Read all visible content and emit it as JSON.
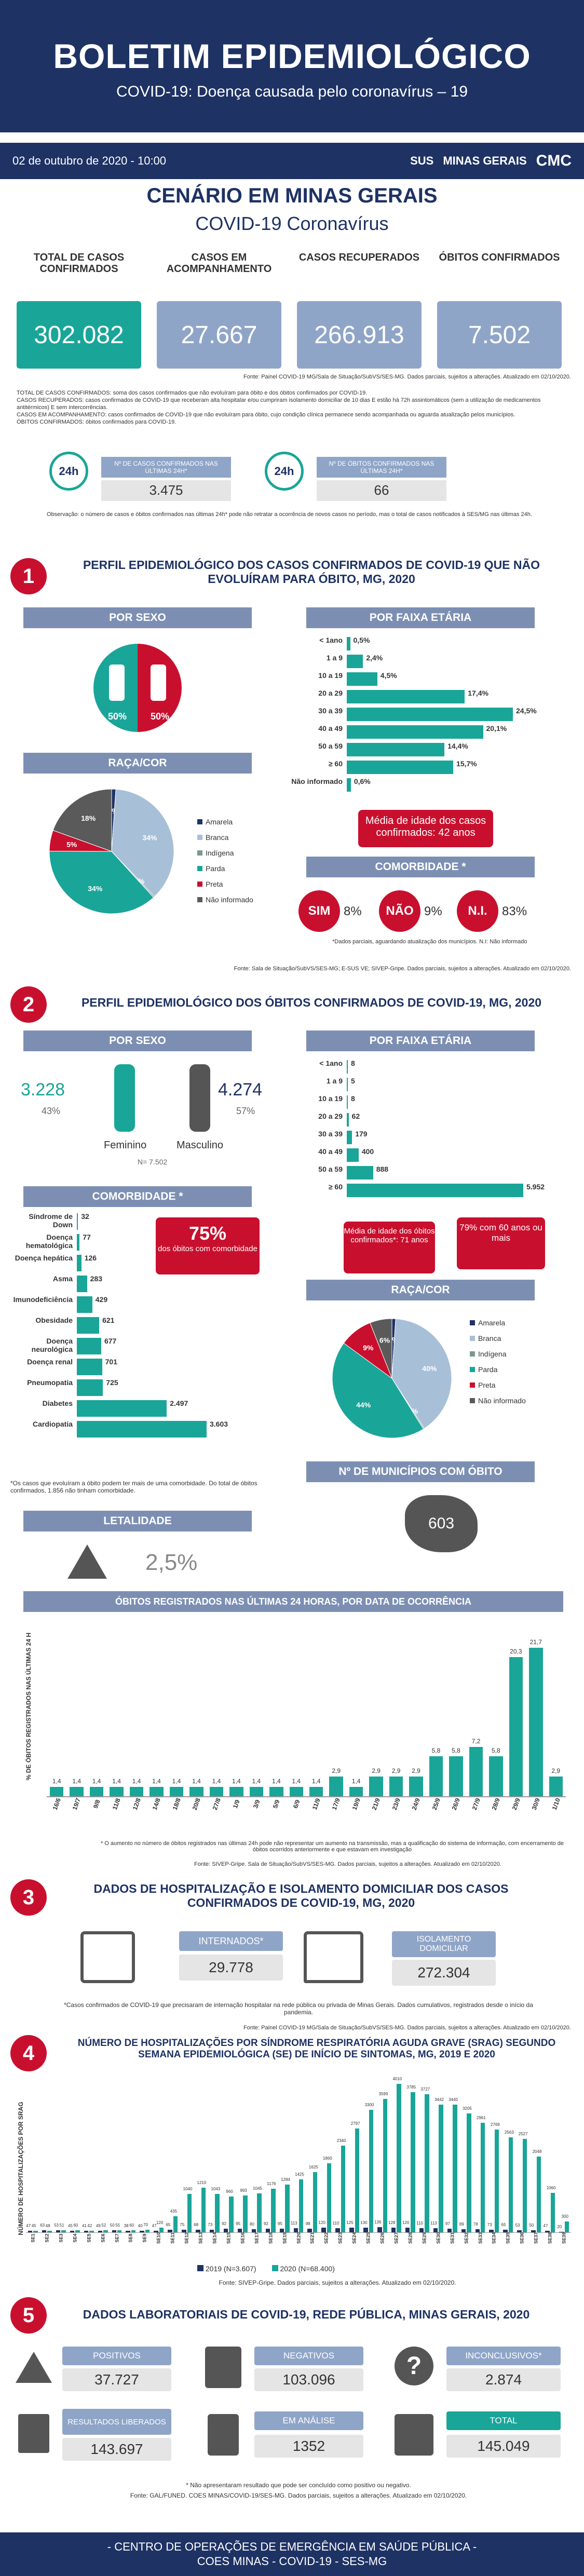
{
  "header": {
    "title": "BOLETIM EPIDEMIOLÓGICO",
    "subtitle": "COVID-19: Doença causada pelo coronavírus – 19"
  },
  "datebar": {
    "date": "02 de outubro de 2020 - 10:00",
    "sus": "SUS",
    "mg": "MINAS GERAIS",
    "cmc": "CMC"
  },
  "scenario": {
    "title": "CENÁRIO EM MINAS GERAIS",
    "subtitle": "COVID-19 Coronavírus"
  },
  "kpis": [
    {
      "label": "TOTAL DE CASOS CONFIRMADOS",
      "value": "302.082",
      "color": "#1aa599"
    },
    {
      "label": "CASOS EM ACOMPANHAMENTO",
      "value": "27.667",
      "color": "#8fa5c8"
    },
    {
      "label": "CASOS RECUPERADOS",
      "value": "266.913",
      "color": "#8fa5c8"
    },
    {
      "label": "ÓBITOS CONFIRMADOS",
      "value": "7.502",
      "color": "#8fa5c8"
    }
  ],
  "kpi_source": "Fonte: Painel COVID-19 MG/Sala de Situação/SubVS/SES-MG. Dados parciais, sujeitos a alterações. Atualizado em 02/10/2020.",
  "definitions": [
    "TOTAL DE CASOS CONFIRMADOS: soma dos casos confirmados que não evoluíram para óbito e dos óbitos confirmados por COVID-19.",
    "CASOS RECUPERADOS: casos confirmados de COVID-19 que receberam alta hospitalar e/ou cumpriram isolamento domiciliar de 10 dias E estão há 72h assintomáticos (sem a utilização de medicamentos antitérmicos) E sem intercorrências.",
    "CASOS EM ACOMPANHAMENTO: casos confirmados de COVID-19 que não evoluíram para óbito, cujo condição clínica permanece sendo acompanhada ou aguarda atualização pelos municípios.",
    "ÓBITOS CONFIRMADOS: óbitos confirmados para COVID-19."
  ],
  "last24": {
    "cases_label": "Nº DE CASOS CONFIRMADOS NAS ÚLTIMAS 24H*",
    "cases": "3.475",
    "deaths_label": "Nº DE ÓBITOS CONFIRMADOS NAS ÚLTIMAS 24H*",
    "deaths": "66",
    "icon_text": "24h",
    "note": "Observação: o número de casos e óbitos confirmados nas últimas 24h* pode não retratar a ocorrência de novos casos no período, mas o total de casos notificados à SES/MG nas últimas 24h."
  },
  "s1": {
    "num": "1",
    "title": "PERFIL EPIDEMIOLÓGICO DOS CASOS CONFIRMADOS DE COVID-19 QUE NÃO EVOLUÍRAM PARA ÓBITO, MG, 2020",
    "sex_head": "POR SEXO",
    "male": "50%",
    "female": "50%",
    "age_head": "POR FAIXA ETÁRIA",
    "ages": [
      {
        "label": "< 1ano",
        "value": "0,5%",
        "v": 0.5
      },
      {
        "label": "1 a 9",
        "value": "2,4%",
        "v": 2.4
      },
      {
        "label": "10 a 19",
        "value": "4,5%",
        "v": 4.5
      },
      {
        "label": "20 a 29",
        "value": "17,4%",
        "v": 17.4
      },
      {
        "label": "30 a 39",
        "value": "24,5%",
        "v": 24.5
      },
      {
        "label": "40 a 49",
        "value": "20,1%",
        "v": 20.1
      },
      {
        "label": "50 a 59",
        "value": "14,4%",
        "v": 14.4
      },
      {
        "label": "≥ 60",
        "value": "15,7%",
        "v": 15.7
      },
      {
        "label": "Não informado",
        "value": "0,6%",
        "v": 0.6
      }
    ],
    "race_head": "RAÇA/COR",
    "race": [
      {
        "name": "Amarela",
        "pct": "1%",
        "v": 1,
        "color": "#1e3264"
      },
      {
        "name": "Branca",
        "pct": "34%",
        "v": 34,
        "color": "#a8bfd8"
      },
      {
        "name": "Indígena",
        "pct": "0%",
        "v": 0.3,
        "color": "#7a9a8a"
      },
      {
        "name": "Parda",
        "pct": "34%",
        "v": 34,
        "color": "#1aa599"
      },
      {
        "name": "Preta",
        "pct": "5%",
        "v": 5,
        "color": "#c8102e"
      },
      {
        "name": "Não informado",
        "pct": "18%",
        "v": 18,
        "color": "#5a5a5a"
      }
    ],
    "race_pct_extra": "0%",
    "median_age": "Média de idade dos casos confirmados: 42 anos",
    "comorb_head": "COMORBIDADE *",
    "comorb": [
      {
        "label": "SIM",
        "value": "8%"
      },
      {
        "label": "NÃO",
        "value": "9%"
      },
      {
        "label": "N.I.",
        "value": "83%"
      }
    ],
    "comorb_note": "*Dados parciais, aguardando atualização dos municípios. N.I: Não informado",
    "source": "Fonte: Sala de Situação/SubVS/SES-MG; E-SUS VE; SIVEP-Gripe. Dados parciais, sujeitos a alterações. Atualizado em 02/10/2020."
  },
  "s2": {
    "num": "2",
    "title": "PERFIL EPIDEMIOLÓGICO DOS ÓBITOS CONFIRMADOS DE COVID-19, MG, 2020",
    "sex_head": "POR SEXO",
    "fem_count": "3.228",
    "fem_pct": "43%",
    "fem_label": "Feminino",
    "masc_count": "4.274",
    "masc_pct": "57%",
    "masc_label": "Masculino",
    "n_note": "N= 7.502",
    "age_head": "POR FAIXA ETÁRIA",
    "ages": [
      {
        "label": "< 1ano",
        "value": "8",
        "v": 8
      },
      {
        "label": "1 a 9",
        "value": "5",
        "v": 5
      },
      {
        "label": "10 a 19",
        "value": "8",
        "v": 8
      },
      {
        "label": "20 a 29",
        "value": "62",
        "v": 62
      },
      {
        "label": "30 a 39",
        "value": "179",
        "v": 179
      },
      {
        "label": "40 a 49",
        "value": "400",
        "v": 400
      },
      {
        "label": "50 a 59",
        "value": "888",
        "v": 888
      },
      {
        "label": "≥ 60",
        "value": "5.952",
        "v": 5952
      }
    ],
    "median_box": "Média de idade dos óbitos confirmados*: 71 anos",
    "over60_box": "79% com 60 anos ou mais",
    "comorb_head": "COMORBIDADE *",
    "comorb": [
      {
        "label": "Síndrome de Down",
        "value": "32",
        "v": 32
      },
      {
        "label": "Doença hematológica",
        "value": "77",
        "v": 77
      },
      {
        "label": "Doença hepática",
        "value": "126",
        "v": 126
      },
      {
        "label": "Asma",
        "value": "283",
        "v": 283
      },
      {
        "label": "Imunodeficiência",
        "value": "429",
        "v": 429
      },
      {
        "label": "Obesidade",
        "value": "621",
        "v": 621
      },
      {
        "label": "Doença neurológica",
        "value": "677",
        "v": 677
      },
      {
        "label": "Doença renal",
        "value": "701",
        "v": 701
      },
      {
        "label": "Pneumopatia",
        "value": "725",
        "v": 725
      },
      {
        "label": "Diabetes",
        "value": "2.497",
        "v": 2497
      },
      {
        "label": "Cardiopatia",
        "value": "3.603",
        "v": 3603
      }
    ],
    "comorb_pct": "75%",
    "comorb_pct_text": "dos óbitos com comorbidade",
    "comorb_note": "*Os casos que evoluíram a óbito podem ter mais de uma comorbidade. Do total de óbitos confirmados, 1.856 não tinham comorbidade.",
    "race_head": "RAÇA/COR",
    "race": [
      {
        "name": "Amarela",
        "pct": "1%",
        "v": 1,
        "color": "#1e3264"
      },
      {
        "name": "Branca",
        "pct": "40%",
        "v": 40,
        "color": "#a8bfd8"
      },
      {
        "name": "Indígena",
        "pct": "0%",
        "v": 0.3,
        "color": "#7a9a8a"
      },
      {
        "name": "Parda",
        "pct": "44%",
        "v": 44,
        "color": "#1aa599"
      },
      {
        "name": "Preta",
        "pct": "9%",
        "v": 9,
        "color": "#c8102e"
      },
      {
        "name": "Não informado",
        "pct": "6%",
        "v": 6,
        "color": "#5a5a5a"
      }
    ],
    "munic_head": "Nº DE MUNICÍPIOS COM ÓBITO",
    "munic": "603",
    "leth_head": "LETALIDADE",
    "leth": "2,5%",
    "daily_head": "ÓBITOS REGISTRADOS NAS ÚLTIMAS 24 HORAS, POR DATA DE OCORRÊNCIA",
    "daily_ylabel": "% DE ÓBITOS REGISTRADOS NAS ÚLTIMAS 24 H",
    "daily_note": "* O aumento no número de óbitos registrados nas últimas 24h pode não representar um aumento na transmissão, mas a qualificação do sistema de informação, com encerramento de óbitos ocorridos anteriormente e que estavam em investigação",
    "daily_source": "Fonte: SIVEP-Gripe. Sala de Situação/SubVS/SES-MG. Dados parciais, sujeitos a alterações. Atualizado em 02/10/2020."
  },
  "s3": {
    "num": "3",
    "title": "DADOS DE HOSPITALIZAÇÃO E ISOLAMENTO DOMICILIAR DOS CASOS CONFIRMADOS DE COVID-19, MG, 2020",
    "hosp_label": "INTERNADOS*",
    "hosp": "29.778",
    "iso_label": "ISOLAMENTO DOMICILIAR",
    "iso": "272.304",
    "note": "*Casos confirmados de COVID-19 que precisaram de internação hospitalar na rede pública ou privada de Minas Gerais. Dados cumulativos, registrados desde o início da pandemia.",
    "source": "Fonte: Painel COVID-19 MG/Sala de Situação/SubVS/SES-MG. Dados parciais, sujeitos a alterações. Atualizado em 02/10/2020."
  },
  "s4": {
    "num": "4",
    "title": "NÚMERO DE HOSPITALIZAÇÕES POR SÍNDROME RESPIRATÓRIA AGUDA GRAVE (SRAG) SEGUNDO SEMANA EPIDEMIOLÓGICA (SE) DE INÍCIO DE SINTOMAS, MG, 2019 E 2020",
    "ylabel": "NÚMERO DE HOSPITALIZAÇÕES POR SRAG",
    "legend_2019": "2019 (N=3.607)",
    "legend_2020": "2020 (N=68.400)",
    "source": "Fonte: SIVEP-Gripe. Dados parciais, sujeitos a alterações. Atualizado em 02/10/2020."
  },
  "s5": {
    "num": "5",
    "title": "DADOS LABORATORIAIS DE COVID-19, REDE PÚBLICA, MINAS GERAIS, 2020",
    "items": [
      {
        "label": "POSITIVOS",
        "value": "37.727"
      },
      {
        "label": "NEGATIVOS",
        "value": "103.096"
      },
      {
        "label": "INCONCLUSIVOS*",
        "value": "2.874"
      },
      {
        "label": "RESULTADOS LIBERADOS",
        "value": "143.697"
      },
      {
        "label": "EM ANÁLISE",
        "value": "1352"
      },
      {
        "label": "TOTAL",
        "value": "145.049"
      }
    ],
    "note": "* Não apresentaram resultado que pode ser concluído como positivo ou negativo.",
    "source": "Fonte: GAL/FUNED. COES MINAS/COVID-19/SES-MG. Dados parciais, sujeitos a alterações. Atualizado em 02/10/2020."
  },
  "footer": {
    "line1": "- CENTRO DE OPERAÇÕES DE EMERGÊNCIA EM SAÚDE PÚBLICA -",
    "line2": "COES MINAS - COVID-19 - SES-MG"
  },
  "chart_data": [
    {
      "type": "bar",
      "title": "ÓBITOS REGISTRADOS NAS ÚLTIMAS 24 HORAS, POR DATA DE OCORRÊNCIA",
      "ylabel": "% DE ÓBITOS REGISTRADOS NAS ÚLTIMAS 24 H",
      "categories": [
        "16/6",
        "19/7",
        "9/8",
        "11/8",
        "12/8",
        "14/8",
        "18/8",
        "20/8",
        "27/8",
        "1/9",
        "3/9",
        "5/9",
        "6/9",
        "11/9",
        "17/9",
        "19/9",
        "21/9",
        "23/9",
        "24/9",
        "25/9",
        "26/9",
        "27/9",
        "28/9",
        "29/9",
        "30/9",
        "1/10"
      ],
      "values": [
        1.4,
        1.4,
        1.4,
        1.4,
        1.4,
        1.4,
        1.4,
        1.4,
        1.4,
        1.4,
        1.4,
        1.4,
        1.4,
        1.4,
        2.9,
        1.4,
        2.9,
        2.9,
        2.9,
        5.8,
        5.8,
        7.2,
        5.8,
        20.3,
        21.7,
        2.9
      ],
      "ylim": [
        0,
        25
      ]
    },
    {
      "type": "bar",
      "title": "NÚMERO DE HOSPITALIZAÇÕES POR SÍNDROME RESPIRATÓRIA AGUDA GRAVE (SRAG) SEGUNDO SEMANA EPIDEMIOLÓGICA (SE) DE INÍCIO DE SINTOMAS, MG, 2019 E 2020",
      "ylabel": "NÚMERO DE HOSPITALIZAÇÕES POR SRAG",
      "categories": [
        "SE1",
        "SE2",
        "SE3",
        "SE4",
        "SE5",
        "SE6",
        "SE7",
        "SE8",
        "SE9",
        "SE10",
        "SE11",
        "SE12",
        "SE13",
        "SE14",
        "SE15",
        "SE16",
        "SE17",
        "SE18",
        "SE19",
        "SE20",
        "SE21",
        "SE22",
        "SE23",
        "SE24",
        "SE25",
        "SE26",
        "SE27",
        "SE28",
        "SE29",
        "SE30",
        "SE31",
        "SE32",
        "SE33",
        "SE34",
        "SE35",
        "SE36",
        "SE37",
        "SE38",
        "SE39"
      ],
      "series": [
        {
          "name": "2019 (N=3.607)",
          "values": [
            47,
            63,
            53,
            45,
            41,
            49,
            50,
            38,
            40,
            47,
            65,
            75,
            68,
            73,
            92,
            95,
            80,
            92,
            95,
            113,
            98,
            120,
            110,
            125,
            130,
            136,
            128,
            120,
            110,
            113,
            97,
            89,
            78,
            73,
            65,
            53,
            50,
            47,
            20
          ]
        },
        {
          "name": "2020 (N=68.400)",
          "values": [
            45,
            48,
            51,
            60,
            42,
            52,
            55,
            60,
            70,
            120,
            435,
            1040,
            1210,
            1043,
            960,
            993,
            1045,
            1176,
            1284,
            1425,
            1625,
            1860,
            2340,
            2797,
            3300,
            3599,
            4010,
            3785,
            3727,
            3442,
            3440,
            3205,
            2961,
            2769,
            2563,
            2527,
            2048,
            1060,
            300
          ]
        }
      ]
    }
  ]
}
